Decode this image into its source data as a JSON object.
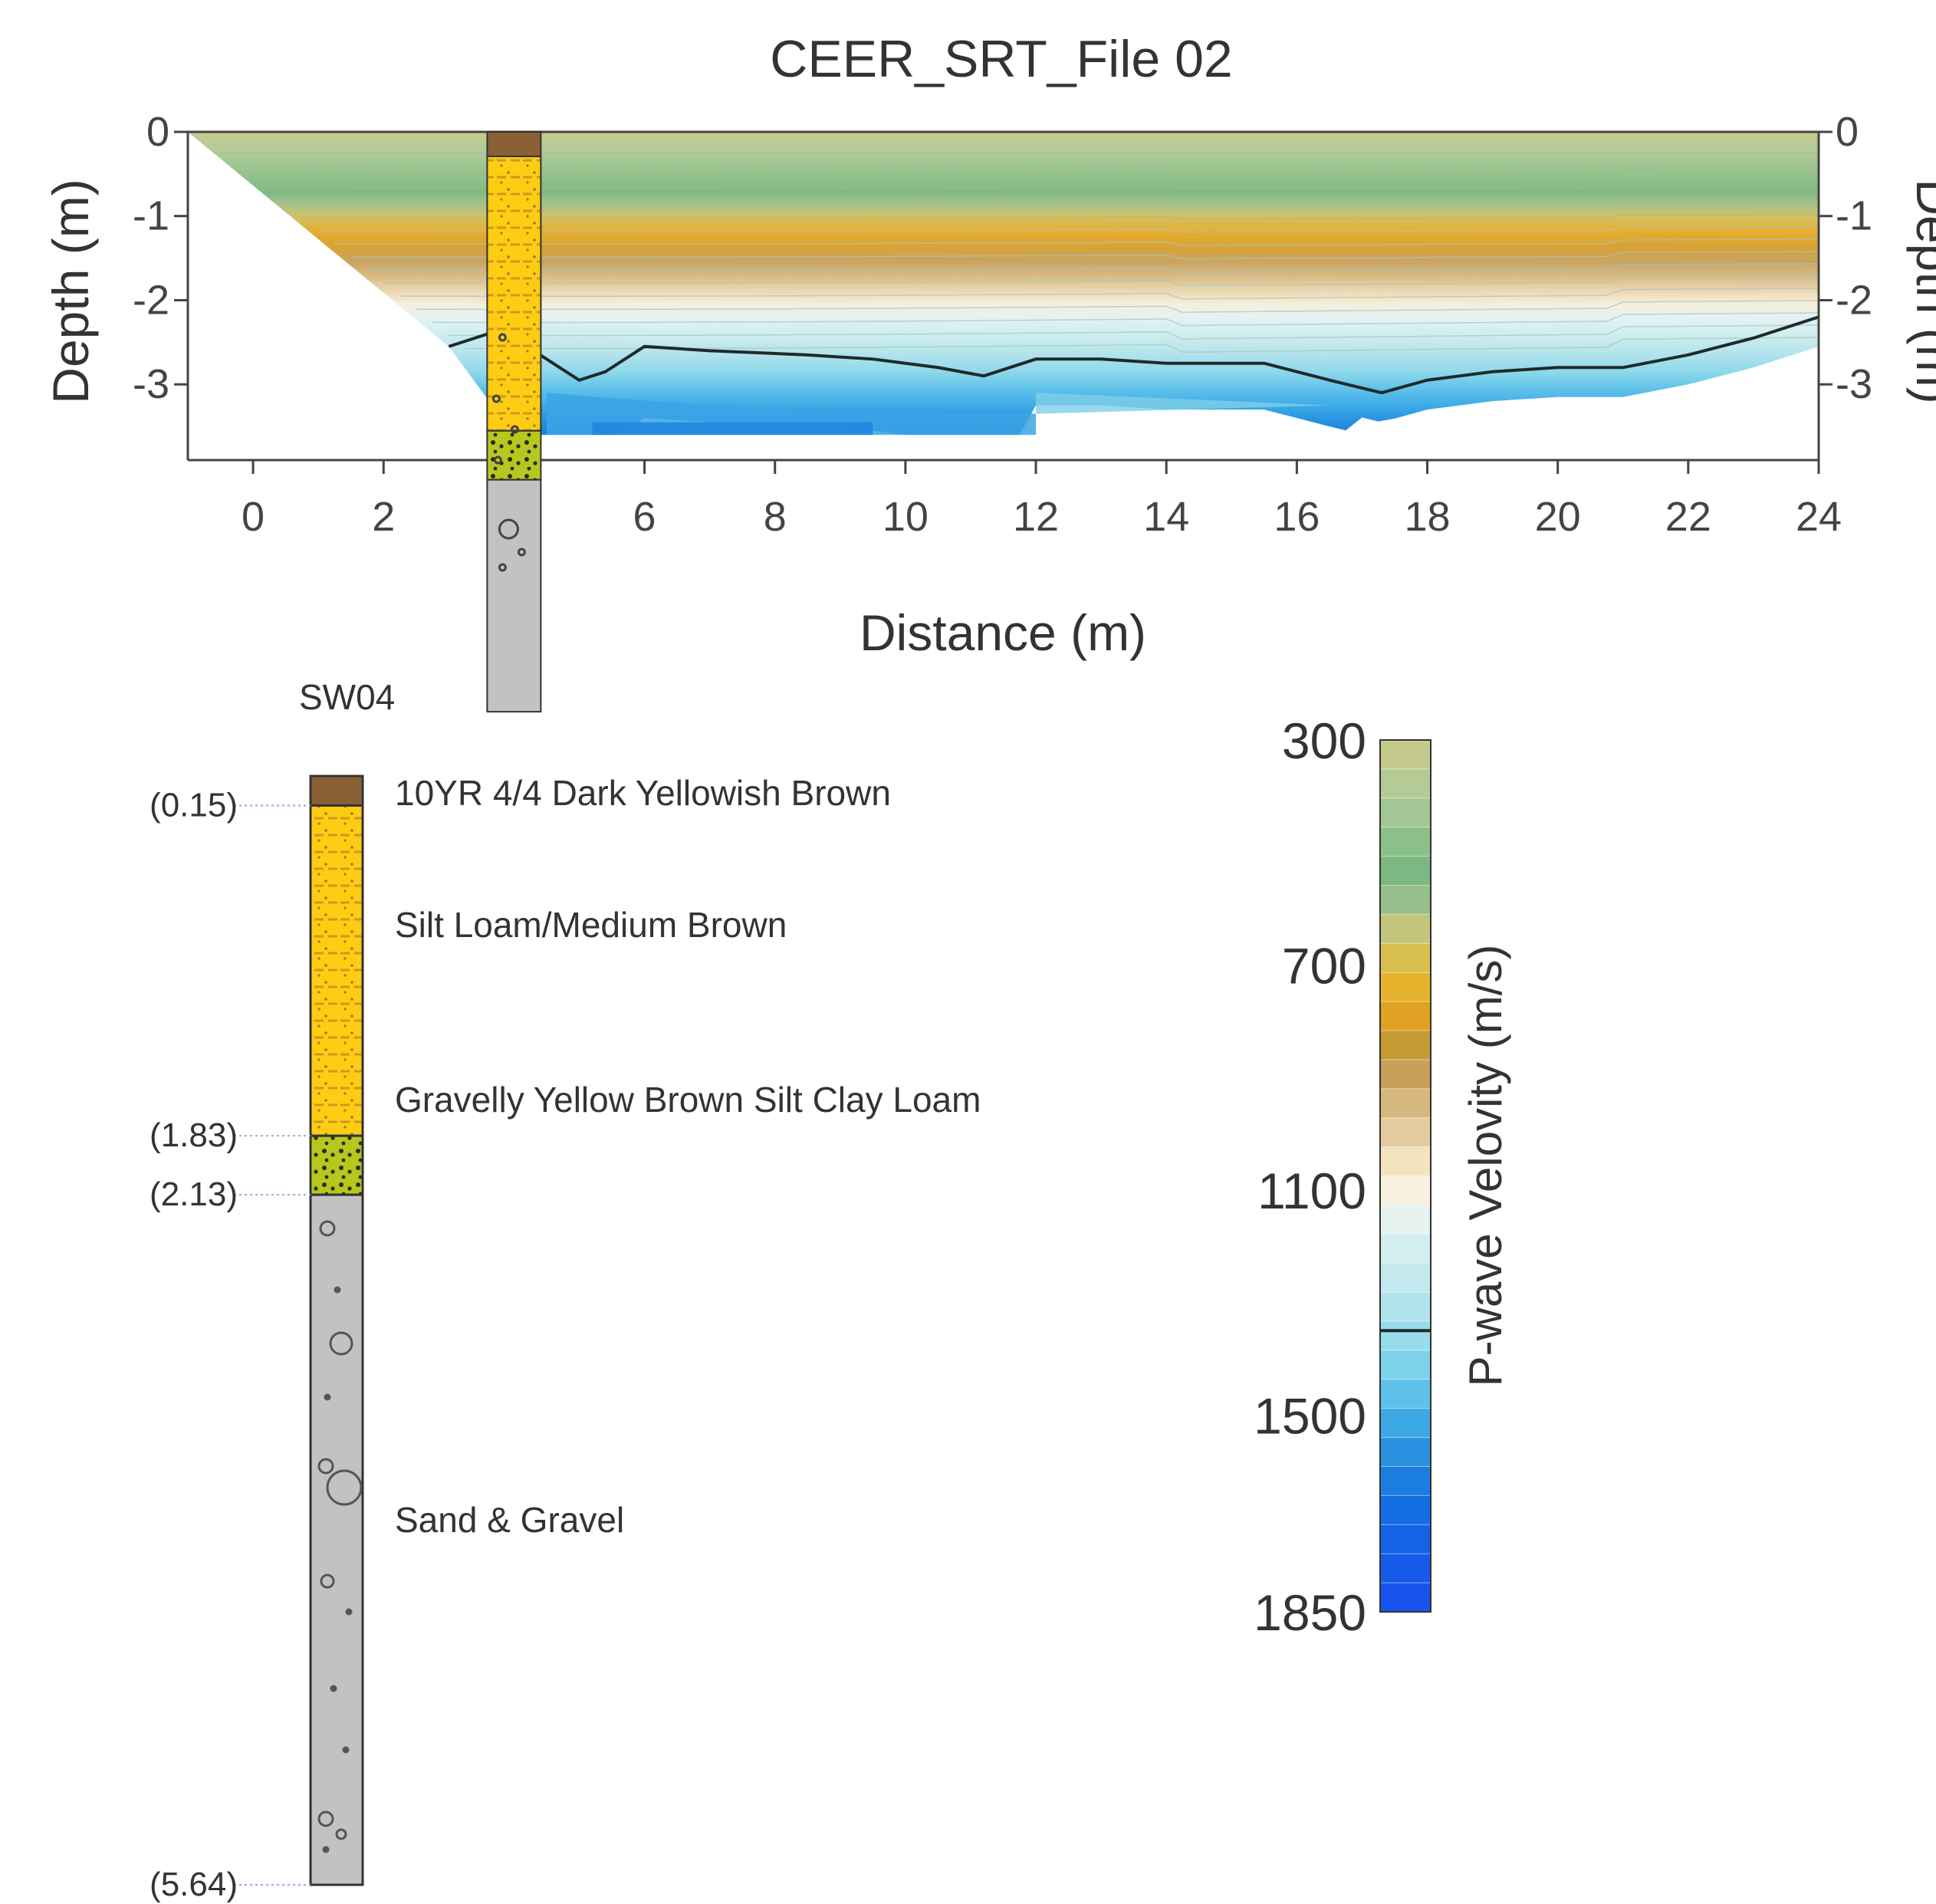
{
  "chart_data": {
    "type": "heatmap",
    "title": "CEER_SRT_File 02",
    "xlabel": "Distance (m)",
    "ylabel": "Depth (m)",
    "ylabel_right": "Depth (m)",
    "xlim": [
      -1,
      24
    ],
    "ylim": [
      -3.9,
      0
    ],
    "x_ticks": [
      "0",
      "2",
      "4",
      "6",
      "8",
      "10",
      "12",
      "14",
      "16",
      "18",
      "20",
      "22",
      "24"
    ],
    "y_ticks": [
      "0",
      "-1",
      "-2",
      "-3"
    ],
    "colorbar": {
      "label": "P-wave Velovity (m/s)",
      "ticks": [
        "300",
        "700",
        "1100",
        "1500",
        "1850"
      ],
      "tick_values": [
        300,
        700,
        1100,
        1500,
        1850
      ],
      "range": [
        300,
        1850
      ],
      "colors": [
        "#c4ca8c",
        "#b5cb95",
        "#a2c794",
        "#8bc08a",
        "#7db882",
        "#98bf8c",
        "#c4c57c",
        "#d8be4e",
        "#e7b22e",
        "#e0a222",
        "#c49a33",
        "#c7a059",
        "#d6b87e",
        "#e4cb9d",
        "#f4e3bf",
        "#f8f1df",
        "#e6f3f1",
        "#d3eeef",
        "#c3e9ee",
        "#b1e4ec",
        "#97dceb",
        "#7dd1ea",
        "#5ec1ea",
        "#3ca9e5",
        "#2a92e0",
        "#1c7de0",
        "#146de2",
        "#1463e6",
        "#165ae9",
        "#1854ec"
      ],
      "highlight_value": 1350
    },
    "contour_1350_line": {
      "x": [
        3.0,
        3.6,
        4.2,
        5.0,
        5.4,
        6.0,
        7.0,
        8.5,
        9.5,
        10.5,
        11.2,
        12.0,
        13.0,
        14.0,
        15.5,
        16.5,
        17.3,
        18.0,
        19.0,
        20.0,
        21.0,
        22.0,
        23.0,
        24.0
      ],
      "y": [
        -2.55,
        -2.4,
        -2.55,
        -2.95,
        -2.85,
        -2.55,
        -2.6,
        -2.65,
        -2.7,
        -2.8,
        -2.9,
        -2.7,
        -2.7,
        -2.75,
        -2.75,
        -2.95,
        -3.1,
        -2.95,
        -2.85,
        -2.8,
        -2.8,
        -2.65,
        -2.45,
        -2.2
      ]
    },
    "borehole": {
      "name": "SW04",
      "x": 4,
      "depth_labels": [
        "(0.15)",
        "(1.83)",
        "(2.13)",
        "(5.64)"
      ],
      "depths": [
        0.15,
        1.83,
        2.13,
        5.64
      ],
      "layers": [
        {
          "top": 0,
          "bottom": 0.15,
          "description": "10YR 4/4 Dark Yellowish Brown",
          "color": "#8a6036"
        },
        {
          "top": 0.15,
          "bottom": 1.83,
          "description": "Silt Loam/Medium Brown",
          "color": "#ffcc14"
        },
        {
          "top": 1.83,
          "bottom": 2.13,
          "description": "Gravelly Yellow Brown Silt Clay Loam",
          "color": "#b6c81e"
        },
        {
          "top": 2.13,
          "bottom": 5.64,
          "description": "Sand & Gravel",
          "color": "#c2c2c2"
        }
      ]
    }
  }
}
